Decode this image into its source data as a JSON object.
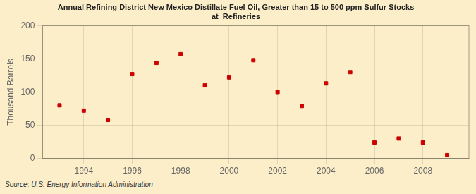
{
  "chart_data": {
    "type": "scatter",
    "title": "Annual Refining District New Mexico Distillate Fuel Oil, Greater than 15 to 500 ppm Sulfur Stocks",
    "subtitle": "at  Refineries",
    "y_label": "Thousand Barrels",
    "annotations": [
      "Source: U.S. Energy Information Administration"
    ],
    "x": [
      1993,
      1994,
      1995,
      1996,
      1997,
      1998,
      1999,
      2000,
      2001,
      2002,
      2003,
      2004,
      2005,
      2006,
      2007,
      2008,
      2009
    ],
    "values": [
      80,
      72,
      58,
      127,
      144,
      157,
      110,
      122,
      148,
      100,
      79,
      113,
      130,
      24,
      30,
      24,
      5
    ],
    "color": "#cc0000",
    "marker": "square",
    "xlim": [
      1992.3,
      2009.9
    ],
    "xticks": [
      1994,
      1996,
      1998,
      2000,
      2002,
      2004,
      2006,
      2008
    ],
    "ylim": [
      0,
      200
    ],
    "yticks": [
      0,
      50,
      100,
      150,
      200
    ],
    "grid": true
  }
}
